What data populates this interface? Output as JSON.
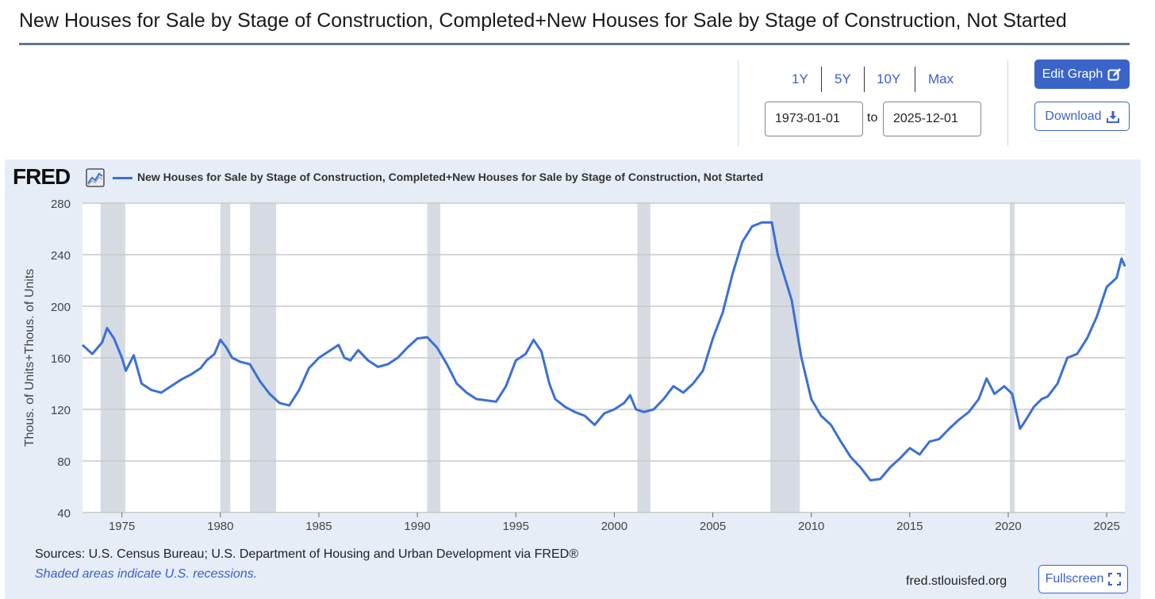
{
  "title": "New Houses for Sale by Stage of Construction, Completed+New Houses for Sale by Stage of Construction, Not Started",
  "controls": {
    "ranges": [
      "1Y",
      "5Y",
      "10Y",
      "Max"
    ],
    "start_date": "1973-01-01",
    "end_date": "2025-12-01",
    "to_label": "to",
    "edit_label": "Edit Graph",
    "download_label": "Download"
  },
  "logo_text": "FRED",
  "footer": {
    "source": "Sources: U.S. Census Bureau; U.S. Department of Housing and Urban Development via FRED®",
    "note": "Shaded areas indicate U.S. recessions.",
    "url": "fred.stlouisfed.org",
    "fullscreen_label": "Fullscreen"
  },
  "colors": {
    "series": "#3a6fd8",
    "recession": "#d6dbe3",
    "accent": "#3a64c8",
    "panel": "#e6edf7"
  },
  "chart_data": {
    "type": "line",
    "title": "",
    "ylabel": "Thous. of Units+Thous. of Units",
    "xlabel": "",
    "xlim": [
      1973.0,
      2025.92
    ],
    "ylim": [
      40,
      280
    ],
    "yticks": [
      40,
      80,
      120,
      160,
      200,
      240,
      280
    ],
    "xticks": [
      1975,
      1980,
      1985,
      1990,
      1995,
      2000,
      2005,
      2010,
      2015,
      2020,
      2025
    ],
    "grid": true,
    "legend": "top-left",
    "recessions": [
      [
        1973.92,
        1975.17
      ],
      [
        1980.0,
        1980.5
      ],
      [
        1981.5,
        1982.83
      ],
      [
        1990.5,
        1991.17
      ],
      [
        2001.17,
        2001.83
      ],
      [
        2007.92,
        2009.42
      ],
      [
        2020.08,
        2020.33
      ]
    ],
    "series": [
      {
        "name": "New Houses for Sale by Stage of Construction, Completed+New Houses for Sale by Stage of Construction, Not Started",
        "x": [
          1973.0,
          1973.5,
          1974.0,
          1974.25,
          1974.6,
          1975.0,
          1975.2,
          1975.6,
          1976.0,
          1976.5,
          1977.0,
          1977.5,
          1978.0,
          1978.5,
          1979.0,
          1979.3,
          1979.7,
          1980.0,
          1980.3,
          1980.6,
          1981.0,
          1981.5,
          1982.0,
          1982.5,
          1983.0,
          1983.5,
          1984.0,
          1984.5,
          1985.0,
          1985.5,
          1986.0,
          1986.3,
          1986.6,
          1987.0,
          1987.5,
          1988.0,
          1988.5,
          1989.0,
          1989.5,
          1990.0,
          1990.5,
          1991.0,
          1991.5,
          1992.0,
          1992.5,
          1993.0,
          1993.5,
          1994.0,
          1994.5,
          1995.0,
          1995.5,
          1995.9,
          1996.3,
          1996.7,
          1997.0,
          1997.5,
          1998.0,
          1998.5,
          1999.0,
          1999.5,
          2000.0,
          2000.5,
          2000.8,
          2001.1,
          2001.5,
          2002.0,
          2002.5,
          2003.0,
          2003.5,
          2004.0,
          2004.5,
          2005.0,
          2005.5,
          2006.0,
          2006.5,
          2007.0,
          2007.5,
          2008.0,
          2008.3,
          2008.7,
          2009.0,
          2009.5,
          2010.0,
          2010.5,
          2011.0,
          2011.5,
          2012.0,
          2012.5,
          2013.0,
          2013.5,
          2014.0,
          2014.5,
          2015.0,
          2015.5,
          2016.0,
          2016.5,
          2017.0,
          2017.5,
          2018.0,
          2018.5,
          2018.9,
          2019.3,
          2019.8,
          2020.2,
          2020.6,
          2020.9,
          2021.3,
          2021.7,
          2022.0,
          2022.5,
          2023.0,
          2023.5,
          2024.0,
          2024.5,
          2025.0,
          2025.5,
          2025.75,
          2025.92
        ],
        "values": [
          170,
          163,
          172,
          183,
          175,
          160,
          150,
          162,
          140,
          135,
          133,
          138,
          143,
          147,
          152,
          158,
          163,
          174,
          168,
          160,
          157,
          155,
          142,
          132,
          125,
          123,
          135,
          152,
          160,
          165,
          170,
          160,
          158,
          166,
          158,
          153,
          155,
          160,
          168,
          175,
          176,
          168,
          155,
          140,
          133,
          128,
          127,
          126,
          138,
          158,
          163,
          174,
          165,
          140,
          128,
          122,
          118,
          115,
          108,
          117,
          120,
          125,
          131,
          120,
          118,
          120,
          128,
          138,
          133,
          140,
          150,
          175,
          195,
          225,
          250,
          262,
          265,
          265,
          240,
          220,
          205,
          160,
          128,
          115,
          108,
          95,
          83,
          75,
          65,
          66,
          75,
          82,
          90,
          85,
          95,
          97,
          105,
          112,
          118,
          128,
          144,
          132,
          138,
          132,
          105,
          112,
          122,
          128,
          130,
          140,
          160,
          163,
          175,
          192,
          215,
          222,
          237,
          231
        ]
      }
    ]
  }
}
